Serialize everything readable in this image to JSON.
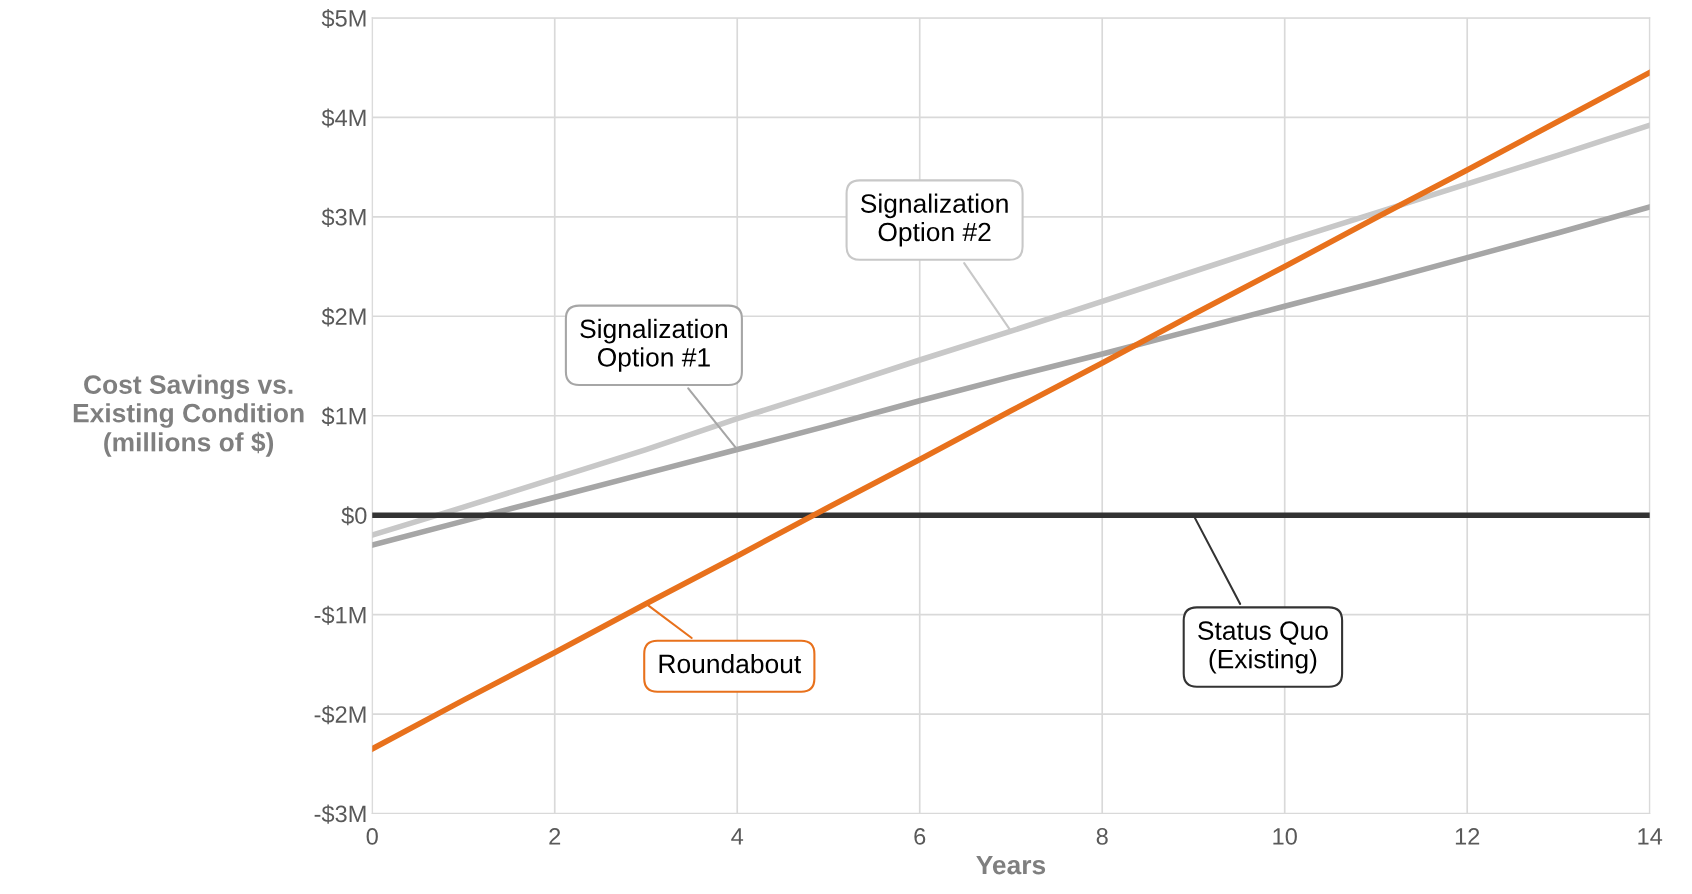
{
  "chart_data": {
    "type": "line",
    "xlabel": "Years",
    "ylabel": "Cost Savings vs.\nExisting Condition\n(millions of $)",
    "x": [
      0,
      1,
      2,
      3,
      4,
      5,
      6,
      7,
      8,
      9,
      10,
      11,
      12,
      13,
      14
    ],
    "series": [
      {
        "color": "#e8711c",
        "values": [
          -2.35,
          -1.86,
          -1.38,
          -0.89,
          -0.41,
          0.08,
          0.56,
          1.05,
          1.53,
          2.02,
          2.5,
          2.99,
          3.47,
          3.96,
          4.45
        ]
      },
      {
        "color": "#a6a6a6",
        "values": [
          -0.3,
          -0.06,
          0.18,
          0.42,
          0.66,
          0.9,
          1.15,
          1.39,
          1.62,
          1.86,
          2.1,
          2.34,
          2.59,
          2.84,
          3.1
        ]
      },
      {
        "color": "#c8c8c8",
        "values": [
          -0.2,
          0.08,
          0.37,
          0.66,
          0.97,
          1.26,
          1.56,
          1.85,
          2.15,
          2.45,
          2.75,
          3.04,
          3.33,
          3.62,
          3.92
        ]
      },
      {
        "color": "#333333",
        "values": [
          0,
          0,
          0,
          0,
          0,
          0,
          0,
          0,
          0,
          0,
          0,
          0,
          0,
          0,
          0
        ]
      }
    ],
    "annotations": [
      {
        "text": "Roundabout",
        "x": 3,
        "y": -0.89
      },
      {
        "text": "Signalization\nOption #1",
        "x": 4,
        "y": 0.66
      },
      {
        "text": "Signalization\nOption #2",
        "x": 7,
        "y": 1.85
      },
      {
        "text": "Status Quo\n(Existing)",
        "x": 9,
        "y": 0
      }
    ],
    "xlim": [
      0,
      14
    ],
    "xticks": [
      0,
      2,
      4,
      6,
      8,
      10,
      12,
      14
    ],
    "ylim": [
      -3,
      5
    ],
    "yticks": [
      {
        "value": -3,
        "label": "-$3M"
      },
      {
        "value": -2,
        "label": "-$2M"
      },
      {
        "value": -1,
        "label": "-$1M"
      },
      {
        "value": 0,
        "label": "$0"
      },
      {
        "value": 1,
        "label": "$1M"
      },
      {
        "value": 2,
        "label": "$2M"
      },
      {
        "value": 3,
        "label": "$3M"
      },
      {
        "value": 4,
        "label": "$4M"
      },
      {
        "value": 5,
        "label": "$5M"
      }
    ],
    "grid": true,
    "marker": "none",
    "line_style": "solid"
  }
}
